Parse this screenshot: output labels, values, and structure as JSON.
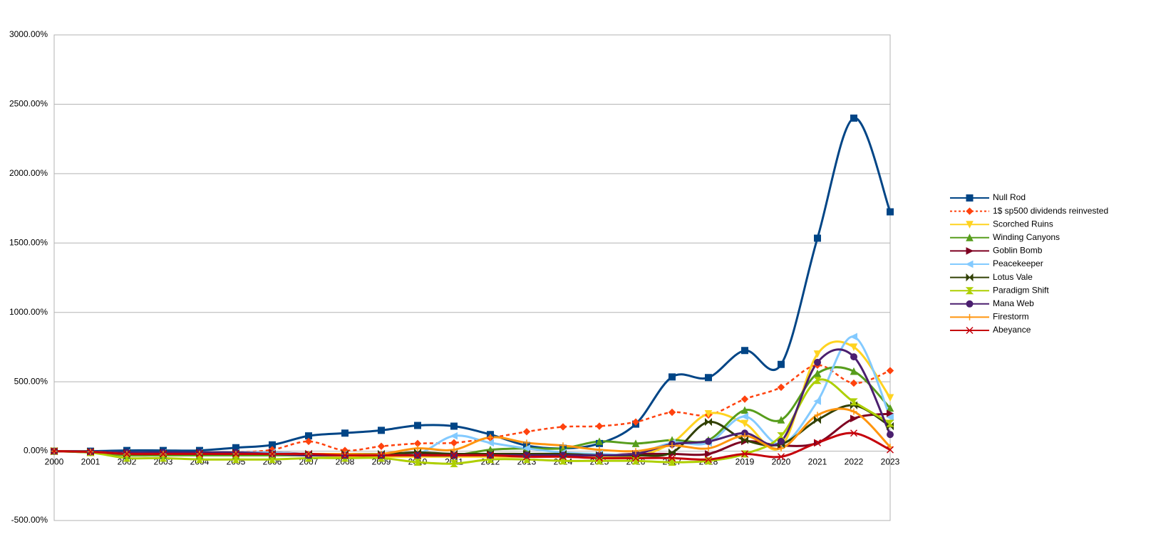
{
  "chart_data": {
    "type": "line",
    "smooth": true,
    "grid": true,
    "legend": "right",
    "categories": [
      "2000",
      "2001",
      "2002",
      "2003",
      "2004",
      "2005",
      "2006",
      "2007",
      "2008",
      "2009",
      "2010",
      "2011",
      "2012",
      "2013",
      "2014",
      "2015",
      "2016",
      "2017",
      "2018",
      "2019",
      "2020",
      "2021",
      "2022",
      "2023"
    ],
    "ylim": [
      -500,
      3000
    ],
    "yticks": [
      {
        "value": -500,
        "label": "-500.00%"
      },
      {
        "value": 0,
        "label": "0.00%"
      },
      {
        "value": 500,
        "label": "500.00%"
      },
      {
        "value": 1000,
        "label": "1000.00%"
      },
      {
        "value": 1500,
        "label": "1500.00%"
      },
      {
        "value": 2000,
        "label": "2000.00%"
      },
      {
        "value": 2500,
        "label": "2500.00%"
      },
      {
        "value": 3000,
        "label": "3000.00%"
      }
    ],
    "series": [
      {
        "name": "Null Rod",
        "color": "#004586",
        "marker": "square",
        "values": [
          0,
          0,
          5,
          5,
          5,
          25,
          45,
          110,
          130,
          150,
          185,
          180,
          120,
          40,
          20,
          55,
          195,
          535,
          530,
          725,
          625,
          1535,
          2400,
          1725
        ]
      },
      {
        "name": "1$ sp500 dividends reinvested",
        "color": "#ff420e",
        "marker": "diamond",
        "dashed": true,
        "values": [
          0,
          -10,
          -25,
          -20,
          -15,
          -10,
          10,
          70,
          5,
          35,
          55,
          60,
          95,
          140,
          175,
          180,
          210,
          280,
          260,
          375,
          460,
          620,
          490,
          580
        ]
      },
      {
        "name": "Scorched Ruins",
        "color": "#ffd320",
        "marker": "triangle-down",
        "values": [
          0,
          -10,
          -30,
          -30,
          -30,
          -30,
          -30,
          -30,
          -40,
          -40,
          -40,
          -40,
          -40,
          -40,
          -40,
          -40,
          -40,
          60,
          270,
          200,
          30,
          700,
          750,
          385
        ]
      },
      {
        "name": "Winding Canyons",
        "color": "#579d1c",
        "marker": "triangle-up",
        "values": [
          0,
          -10,
          -30,
          -30,
          -30,
          -30,
          -30,
          -30,
          -30,
          -30,
          -30,
          -30,
          10,
          20,
          20,
          70,
          55,
          80,
          80,
          295,
          225,
          560,
          575,
          310
        ]
      },
      {
        "name": "Goblin Bomb",
        "color": "#7e0021",
        "marker": "triangle-right",
        "values": [
          0,
          -5,
          -10,
          -10,
          -10,
          -10,
          -10,
          -20,
          -30,
          -30,
          -20,
          -20,
          -20,
          -20,
          -30,
          -30,
          -20,
          -20,
          -20,
          70,
          40,
          60,
          235,
          270
        ]
      },
      {
        "name": "Peacekeeper",
        "color": "#83caff",
        "marker": "triangle-left",
        "values": [
          0,
          -5,
          -10,
          -10,
          -10,
          -10,
          -10,
          -20,
          -20,
          -20,
          -20,
          110,
          60,
          20,
          -10,
          -20,
          -20,
          60,
          60,
          250,
          50,
          360,
          825,
          245
        ]
      },
      {
        "name": "Lotus Vale",
        "color": "#314004",
        "marker": "bowtie",
        "values": [
          0,
          -5,
          -15,
          -15,
          -15,
          -15,
          -20,
          -20,
          -20,
          -20,
          -10,
          -20,
          -20,
          -20,
          -20,
          -30,
          -30,
          -10,
          210,
          80,
          50,
          225,
          330,
          180
        ]
      },
      {
        "name": "Paradigm Shift",
        "color": "#aecf00",
        "marker": "hourglass",
        "values": [
          0,
          -10,
          -50,
          -50,
          -60,
          -60,
          -60,
          -50,
          -50,
          -50,
          -80,
          -90,
          -60,
          -60,
          -70,
          -70,
          -70,
          -80,
          -70,
          -20,
          110,
          510,
          355,
          200
        ]
      },
      {
        "name": "Mana Web",
        "color": "#4b1f6f",
        "marker": "circle",
        "values": [
          0,
          -5,
          -10,
          -10,
          -10,
          -10,
          -20,
          -30,
          -30,
          -30,
          -30,
          -30,
          -30,
          -30,
          -30,
          -30,
          -20,
          50,
          70,
          130,
          70,
          640,
          680,
          120
        ]
      },
      {
        "name": "Firestorm",
        "color": "#ff950e",
        "marker": "plus",
        "values": [
          0,
          -5,
          -20,
          -20,
          -20,
          -20,
          -20,
          -20,
          -20,
          -20,
          20,
          10,
          100,
          60,
          40,
          10,
          0,
          40,
          20,
          110,
          20,
          260,
          285,
          30
        ]
      },
      {
        "name": "Abeyance",
        "color": "#c5000b",
        "marker": "x",
        "values": [
          0,
          -5,
          -20,
          -20,
          -20,
          -20,
          -20,
          -20,
          -30,
          -30,
          -30,
          -30,
          -30,
          -40,
          -40,
          -50,
          -50,
          -50,
          -60,
          -20,
          -40,
          60,
          130,
          10
        ]
      }
    ]
  }
}
